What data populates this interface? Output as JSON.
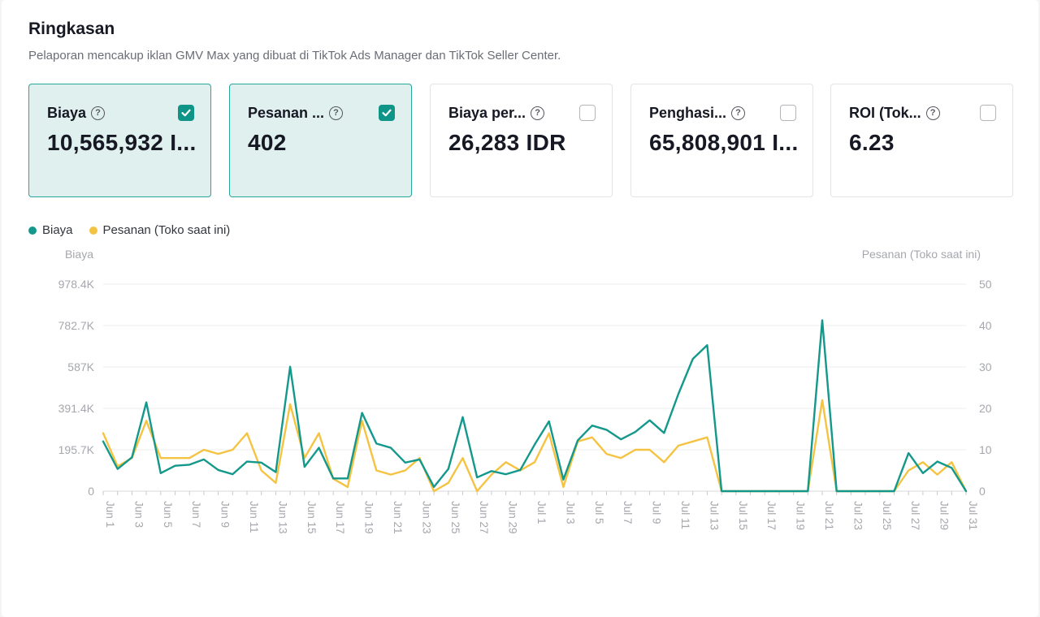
{
  "header": {
    "title": "Ringkasan",
    "subtitle": "Pelaporan mencakup iklan GMV Max yang dibuat di TikTok Ads Manager dan TikTok Seller Center."
  },
  "cards": [
    {
      "label": "Biaya",
      "value": "10,565,932 I...",
      "checked": true,
      "help_icon": "question-circle-icon"
    },
    {
      "label": "Pesanan ...",
      "value": "402",
      "checked": true,
      "help_icon": "question-circle-icon"
    },
    {
      "label": "Biaya per...",
      "value": "26,283 IDR",
      "checked": false,
      "help_icon": "question-circle-icon"
    },
    {
      "label": "Penghasi...",
      "value": "65,808,901 I...",
      "checked": false,
      "help_icon": "question-circle-icon"
    },
    {
      "label": "ROI (Tok...",
      "value": "6.23",
      "checked": false,
      "help_icon": "question-circle-icon"
    }
  ],
  "colors": {
    "accent": "#0f9488",
    "selected_card_bg": "#dff0ee",
    "series_biaya": "#13988b",
    "series_pesanan": "#f5c342"
  },
  "chart_data": {
    "type": "line",
    "legend": [
      "Biaya",
      "Pesanan (Toko saat ini)"
    ],
    "legend_position": "top-left",
    "y_left_label": "Biaya",
    "y_right_label": "Pesanan (Toko saat ini)",
    "y_left_ticks": [
      "0",
      "195.7K",
      "391.4K",
      "587K",
      "782.7K",
      "978.4K"
    ],
    "y_right_ticks": [
      "0",
      "10",
      "20",
      "30",
      "40",
      "50"
    ],
    "y_left_range": [
      0,
      978400
    ],
    "y_right_range": [
      0,
      50
    ],
    "grid": true,
    "x_ticks": [
      "Jun 1",
      "Jun 3",
      "Jun 5",
      "Jun 7",
      "Jun 9",
      "Jun 11",
      "Jun 13",
      "Jun 15",
      "Jun 17",
      "Jun 19",
      "Jun 21",
      "Jun 23",
      "Jun 25",
      "Jun 27",
      "Jun 29",
      "Jul 1",
      "Jul 3",
      "Jul 5",
      "Jul 7",
      "Jul 9",
      "Jul 11",
      "Jul 13",
      "Jul 15",
      "Jul 17",
      "Jul 19",
      "Jul 21",
      "Jul 23",
      "Jul 25",
      "Jul 27",
      "Jul 29",
      "Jul 31"
    ],
    "x": [
      "Jun 1",
      "Jun 2",
      "Jun 3",
      "Jun 4",
      "Jun 5",
      "Jun 6",
      "Jun 7",
      "Jun 8",
      "Jun 9",
      "Jun 10",
      "Jun 11",
      "Jun 12",
      "Jun 13",
      "Jun 14",
      "Jun 15",
      "Jun 16",
      "Jun 17",
      "Jun 18",
      "Jun 19",
      "Jun 20",
      "Jun 21",
      "Jun 22",
      "Jun 23",
      "Jun 24",
      "Jun 25",
      "Jun 26",
      "Jun 27",
      "Jun 28",
      "Jun 29",
      "Jun 30",
      "Jul 1",
      "Jul 2",
      "Jul 3",
      "Jul 4",
      "Jul 5",
      "Jul 6",
      "Jul 7",
      "Jul 8",
      "Jul 9",
      "Jul 10",
      "Jul 11",
      "Jul 12",
      "Jul 13",
      "Jul 14",
      "Jul 15",
      "Jul 16",
      "Jul 17",
      "Jul 18",
      "Jul 19",
      "Jul 20",
      "Jul 21",
      "Jul 22",
      "Jul 23",
      "Jul 24",
      "Jul 25",
      "Jul 26",
      "Jul 27",
      "Jul 28",
      "Jul 29",
      "Jul 30",
      "Jul 31"
    ],
    "series": [
      {
        "name": "Biaya",
        "axis": "left",
        "values": [
          235000,
          105000,
          160000,
          420000,
          85000,
          120000,
          125000,
          150000,
          100000,
          80000,
          140000,
          135000,
          90000,
          588000,
          115000,
          205000,
          60000,
          60000,
          370000,
          225000,
          205000,
          135000,
          150000,
          20000,
          105000,
          350000,
          65000,
          95000,
          80000,
          100000,
          220000,
          330000,
          55000,
          240000,
          310000,
          290000,
          245000,
          280000,
          335000,
          275000,
          460000,
          625000,
          690000,
          0,
          0,
          0,
          0,
          0,
          0,
          0,
          808000,
          0,
          0,
          0,
          0,
          0,
          180000,
          85000,
          140000,
          110000,
          0
        ]
      },
      {
        "name": "Pesanan (Toko saat ini)",
        "axis": "right",
        "values": [
          14,
          6,
          8,
          17,
          8,
          8,
          8,
          10,
          9,
          10,
          14,
          5,
          2,
          21,
          8,
          14,
          3,
          1,
          17,
          5,
          4,
          5,
          8,
          0,
          2,
          8,
          0,
          4,
          7,
          5,
          7,
          14,
          1,
          12,
          13,
          9,
          8,
          10,
          10,
          7,
          11,
          12,
          13,
          0,
          0,
          0,
          0,
          0,
          0,
          0,
          22,
          0,
          0,
          0,
          0,
          0,
          5,
          7,
          4,
          7,
          0
        ]
      }
    ]
  }
}
